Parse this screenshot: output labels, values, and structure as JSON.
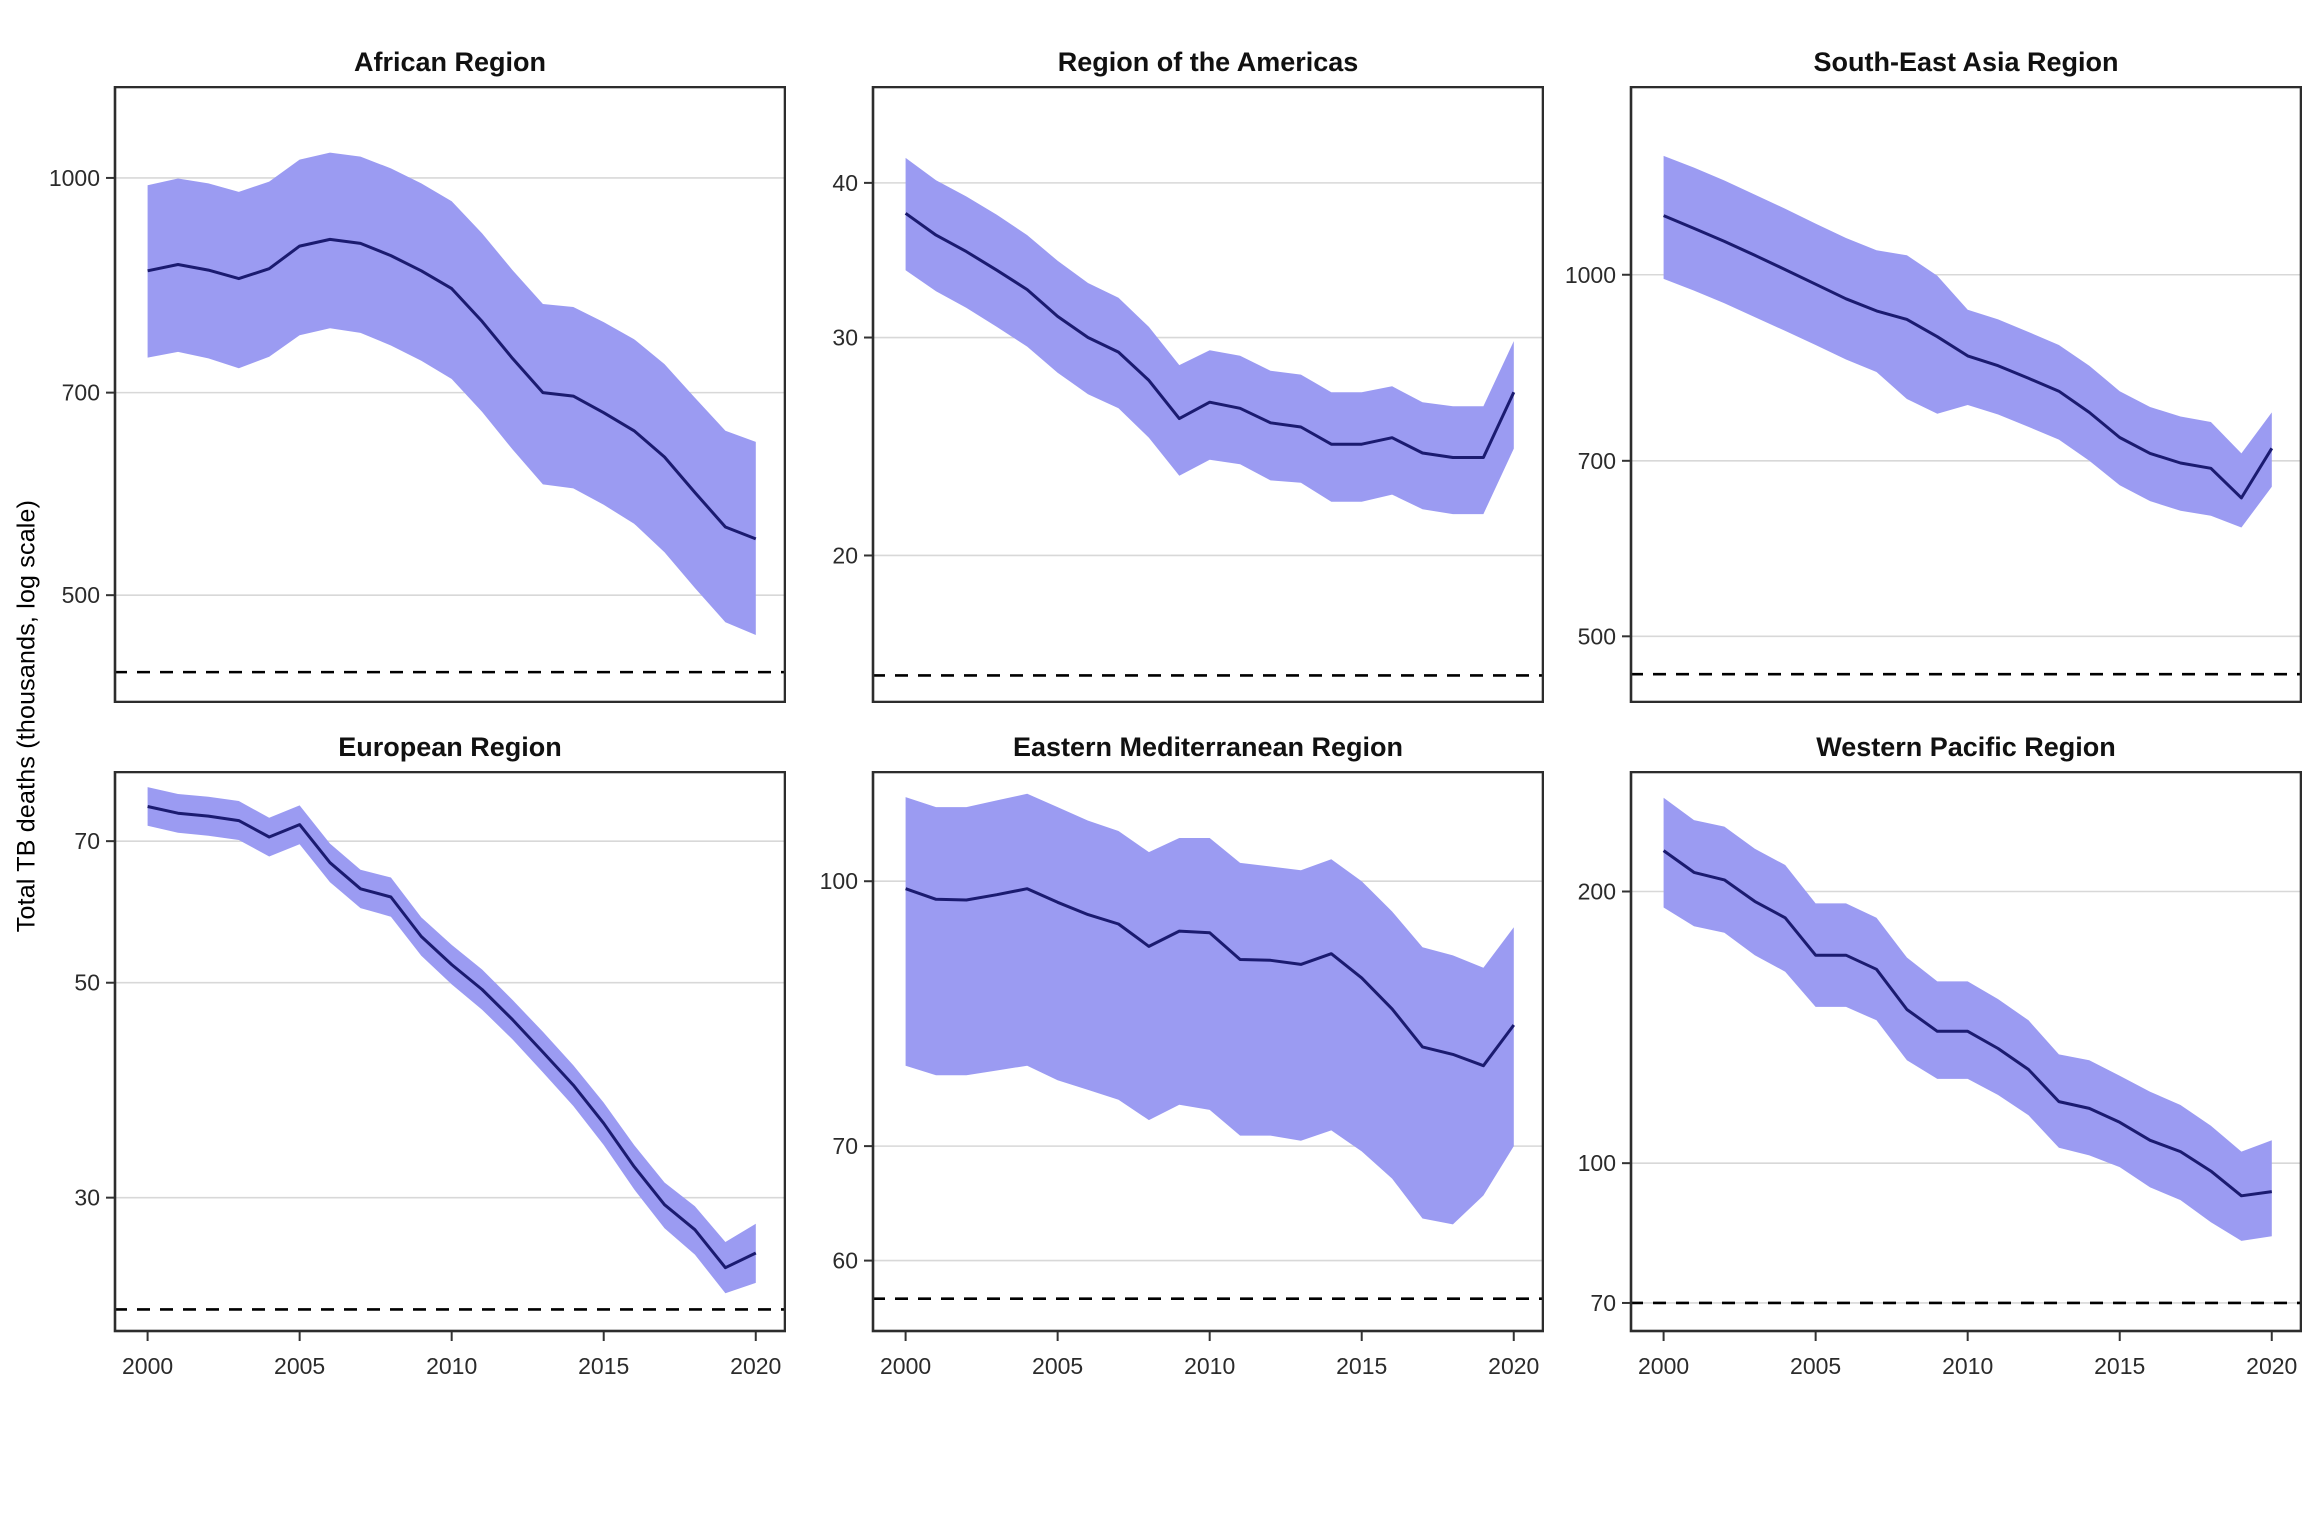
{
  "figure": {
    "y_axis_title": "Total TB deaths (thousands, log scale)",
    "x_tick_labels": [
      "2000",
      "2005",
      "2010",
      "2015",
      "2020"
    ],
    "x_tick_years": [
      2000,
      2005,
      2010,
      2015,
      2020
    ],
    "colors": {
      "ribbon": "#9b9bf2",
      "line": "#1b1b70",
      "gridline": "#d8d8d8",
      "panel_border": "#2d2d2d",
      "dashed_line": "#000000",
      "title_text": "#111111",
      "axis_text": "#2b2b2b",
      "background": "#ffffff"
    }
  },
  "chart_data": [
    {
      "type": "area",
      "title": "African Region",
      "years": [
        2000,
        2001,
        2002,
        2003,
        2004,
        2005,
        2006,
        2007,
        2008,
        2009,
        2010,
        2011,
        2012,
        2013,
        2014,
        2015,
        2016,
        2017,
        2018,
        2019,
        2020
      ],
      "values": [
        857,
        866,
        858,
        846,
        860,
        893,
        903,
        897,
        879,
        857,
        832,
        788,
        741,
        700,
        696,
        677,
        657,
        629,
        593,
        560,
        549
      ],
      "lower": [
        742,
        749,
        741,
        729,
        743,
        770,
        779,
        773,
        757,
        738,
        716,
        678,
        637,
        601,
        597,
        581,
        563,
        537,
        506,
        478,
        468
      ],
      "upper": [
        988,
        999,
        991,
        977,
        994,
        1031,
        1043,
        1036,
        1016,
        991,
        962,
        912,
        858,
        811,
        807,
        787,
        765,
        734,
        694,
        657,
        645
      ],
      "y_ticks": [
        500,
        700,
        1000
      ],
      "ylim": [
        418,
        1165
      ],
      "dashed_line_value": 440,
      "log_scale": true,
      "show_x_labels": false
    },
    {
      "type": "area",
      "title": "Region of the Americas",
      "years": [
        2000,
        2001,
        2002,
        2003,
        2004,
        2005,
        2006,
        2007,
        2008,
        2009,
        2010,
        2011,
        2012,
        2013,
        2014,
        2015,
        2016,
        2017,
        2018,
        2019,
        2020
      ],
      "values": [
        37.8,
        36.3,
        35.2,
        34.0,
        32.8,
        31.2,
        30.0,
        29.2,
        27.7,
        25.8,
        26.6,
        26.3,
        25.6,
        25.4,
        24.6,
        24.6,
        24.9,
        24.2,
        24.0,
        24.0,
        27.1
      ],
      "lower": [
        34.0,
        32.7,
        31.7,
        30.6,
        29.5,
        28.1,
        27.0,
        26.3,
        24.9,
        23.2,
        23.9,
        23.7,
        23.0,
        22.9,
        22.1,
        22.1,
        22.4,
        21.8,
        21.6,
        21.6,
        24.4
      ],
      "upper": [
        41.9,
        40.2,
        39.0,
        37.7,
        36.3,
        34.6,
        33.2,
        32.3,
        30.6,
        28.5,
        29.3,
        29.0,
        28.2,
        28.0,
        27.1,
        27.1,
        27.4,
        26.6,
        26.4,
        26.4,
        29.8
      ],
      "y_ticks": [
        20,
        30,
        40
      ],
      "ylim": [
        15.2,
        47.9
      ],
      "dashed_line_value": 16,
      "log_scale": true,
      "show_x_labels": false
    },
    {
      "type": "area",
      "title": "South-East Asia Region",
      "years": [
        2000,
        2001,
        2002,
        2003,
        2004,
        2005,
        2006,
        2007,
        2008,
        2009,
        2010,
        2011,
        2012,
        2013,
        2014,
        2015,
        2016,
        2017,
        2018,
        2019,
        2020
      ],
      "values": [
        1120,
        1093,
        1066,
        1038,
        1010,
        982,
        955,
        933,
        918,
        888,
        856,
        840,
        820,
        800,
        768,
        732,
        710,
        697,
        690,
        652,
        717
      ],
      "lower": [
        992,
        970,
        947,
        922,
        898,
        874,
        850,
        830,
        788,
        766,
        779,
        765,
        747,
        729,
        700,
        668,
        648,
        636,
        630,
        616,
        666
      ],
      "upper": [
        1256,
        1228,
        1198,
        1166,
        1135,
        1103,
        1073,
        1048,
        1038,
        998,
        935,
        918,
        896,
        874,
        840,
        800,
        776,
        762,
        754,
        710,
        768
      ],
      "y_ticks": [
        500,
        700,
        1000
      ],
      "ylim": [
        440,
        1436
      ],
      "dashed_line_value": 465,
      "log_scale": true,
      "show_x_labels": false
    },
    {
      "type": "area",
      "title": "European Region",
      "years": [
        2000,
        2001,
        2002,
        2003,
        2004,
        2005,
        2006,
        2007,
        2008,
        2009,
        2010,
        2011,
        2012,
        2013,
        2014,
        2015,
        2016,
        2017,
        2018,
        2019,
        2020
      ],
      "values": [
        76.0,
        74.8,
        74.3,
        73.5,
        70.7,
        72.8,
        66.5,
        62.5,
        61.3,
        55.8,
        52.2,
        49.2,
        45.8,
        42.4,
        39.2,
        35.8,
        32.3,
        29.5,
        27.8,
        25.4,
        26.3
      ],
      "lower": [
        72.6,
        71.4,
        70.9,
        70.2,
        67.5,
        69.5,
        63.5,
        59.7,
        58.5,
        53.3,
        49.8,
        46.9,
        43.7,
        40.4,
        37.3,
        34.0,
        30.6,
        27.9,
        26.2,
        23.9,
        24.5
      ],
      "upper": [
        79.6,
        78.3,
        77.8,
        77.0,
        74.0,
        76.2,
        69.6,
        65.4,
        64.2,
        58.4,
        54.7,
        51.6,
        48.0,
        44.5,
        41.1,
        37.6,
        34.0,
        31.1,
        29.4,
        27.0,
        28.2
      ],
      "y_ticks": [
        30,
        50,
        70
      ],
      "ylim": [
        21.8,
        82.7
      ],
      "dashed_line_value": 23,
      "log_scale": true,
      "show_x_labels": true
    },
    {
      "type": "area",
      "title": "Eastern Mediterranean Region",
      "years": [
        2000,
        2001,
        2002,
        2003,
        2004,
        2005,
        2006,
        2007,
        2008,
        2009,
        2010,
        2011,
        2012,
        2013,
        2014,
        2015,
        2016,
        2017,
        2018,
        2019,
        2020
      ],
      "values": [
        99.0,
        97.6,
        97.5,
        98.2,
        99.0,
        97.2,
        95.6,
        94.4,
        91.6,
        93.5,
        93.3,
        90.0,
        89.9,
        89.4,
        90.7,
        87.8,
        84.2,
        80.0,
        79.2,
        78.0,
        82.4
      ],
      "lower": [
        78.0,
        77.0,
        77.0,
        77.5,
        78.0,
        76.5,
        75.5,
        74.5,
        72.5,
        74.0,
        73.5,
        71.0,
        71.0,
        70.5,
        71.5,
        69.5,
        67.0,
        63.5,
        63.0,
        65.5,
        70.0
      ],
      "upper": [
        112.0,
        110.5,
        110.5,
        111.5,
        112.5,
        110.5,
        108.5,
        107.0,
        104.0,
        106.0,
        106.0,
        102.5,
        102.0,
        101.5,
        103.0,
        100.0,
        96.0,
        91.5,
        90.5,
        89.0,
        94.0
      ],
      "y_ticks": [
        60,
        70,
        100
      ],
      "ylim": [
        54.5,
        116
      ],
      "dashed_line_value": 57,
      "log_scale": true,
      "show_x_labels": true
    },
    {
      "type": "area",
      "title": "Western Pacific Region",
      "years": [
        2000,
        2001,
        2002,
        2003,
        2004,
        2005,
        2006,
        2007,
        2008,
        2009,
        2010,
        2011,
        2012,
        2013,
        2014,
        2015,
        2016,
        2017,
        2018,
        2019,
        2020
      ],
      "values": [
        222,
        210,
        206,
        195,
        187,
        170,
        170,
        164,
        148,
        140,
        140,
        134,
        127,
        117,
        115,
        111,
        106,
        103,
        98,
        92,
        93
      ],
      "lower": [
        192,
        183,
        180,
        170,
        163,
        149,
        149,
        144,
        130,
        124,
        124,
        119,
        113,
        104,
        102,
        99,
        94,
        91,
        86,
        82,
        83
      ],
      "upper": [
        254,
        240,
        236,
        223,
        214,
        194,
        194,
        187,
        169,
        159,
        159,
        152,
        144,
        132,
        130,
        125,
        120,
        116,
        110,
        103,
        106
      ],
      "y_ticks": [
        70,
        100,
        200
      ],
      "ylim": [
        65,
        272
      ],
      "dashed_line_value": 70,
      "log_scale": true,
      "show_x_labels": true
    }
  ]
}
